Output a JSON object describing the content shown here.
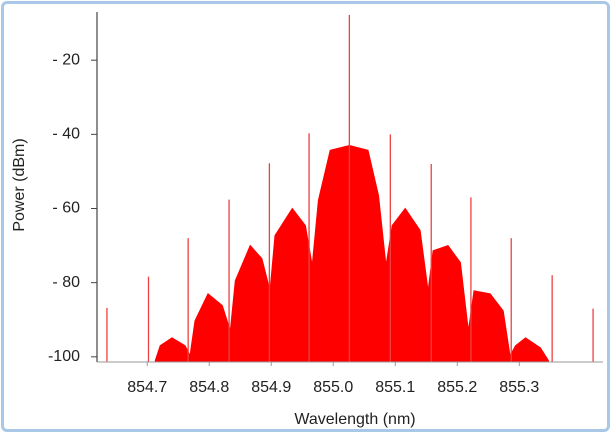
{
  "chart_data": {
    "type": "line",
    "x_label": "Wavelength (nm)",
    "y_label": "Power (dBm)",
    "xlim": [
      854.619,
      855.435
    ],
    "ylim": [
      -101.4,
      -7
    ],
    "xticks": [
      854.7,
      854.8,
      854.9,
      {
        "value": 855.0,
        "label": "855.0"
      },
      855.1,
      855.2,
      855.3
    ],
    "yticks": [
      {
        "value": -20,
        "label": "- 20"
      },
      {
        "value": -40,
        "label": "- 40"
      },
      {
        "value": -60,
        "label": "- 60"
      },
      {
        "value": -80,
        "label": "- 80"
      },
      {
        "value": -100,
        "label": "-100"
      }
    ],
    "series": [
      {
        "type": "area",
        "color": "#ff0000",
        "x": [
          854.713,
          854.721,
          854.74,
          854.761,
          854.769,
          854.777,
          854.798,
          854.821,
          854.834,
          854.842,
          854.866,
          854.885,
          854.898,
          854.906,
          854.934,
          854.955,
          854.966,
          854.976,
          854.995,
          855.026,
          855.056,
          855.073,
          855.085,
          855.095,
          855.116,
          855.14,
          855.153,
          855.161,
          855.185,
          855.205,
          855.218,
          855.227,
          855.253,
          855.274,
          855.285,
          855.294,
          855.31,
          855.334,
          855.347
        ],
        "values": [
          -101,
          -97.0,
          -94.9,
          -97.0,
          -99.7,
          -90.3,
          -83.0,
          -86.2,
          -93.0,
          -79.5,
          -70.0,
          -73.5,
          -82.2,
          -67.3,
          -60.0,
          -64.6,
          -75.4,
          -57.8,
          -44.3,
          -43.0,
          -44.3,
          -56.5,
          -75.4,
          -64.6,
          -60.0,
          -65.9,
          -82.2,
          -71.4,
          -70.0,
          -74.6,
          -93.0,
          -82.2,
          -83.0,
          -87.6,
          -99.7,
          -97.0,
          -94.9,
          -97.6,
          -101
        ]
      },
      {
        "type": "stem",
        "color": "#f04040",
        "x": [
          854.635,
          854.702,
          854.766,
          854.832,
          854.897,
          854.961,
          855.026,
          855.092,
          855.158,
          855.222,
          855.287,
          855.353,
          855.419
        ],
        "values": [
          -86.8,
          -78.4,
          -68,
          -57.6,
          -47.8,
          -39.7,
          -7.8,
          -40,
          -48,
          -57,
          -68,
          -78,
          -87
        ]
      }
    ]
  }
}
